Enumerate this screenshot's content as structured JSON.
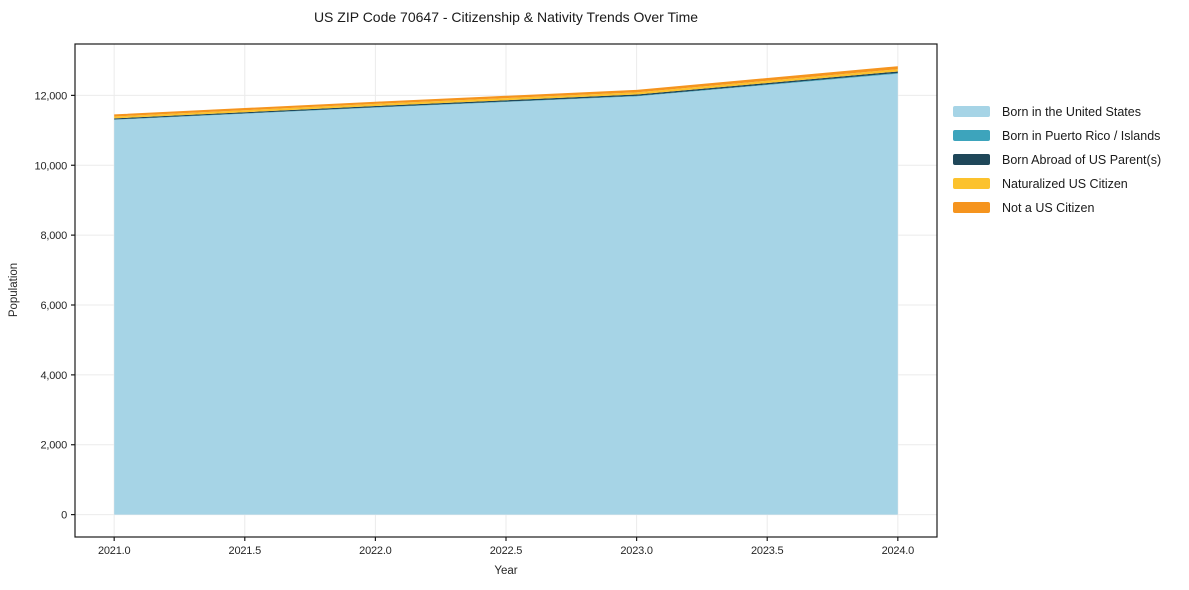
{
  "title": "US ZIP Code 70647 - Citizenship & Nativity Trends Over Time",
  "chart_data": {
    "type": "area",
    "stacked": true,
    "title": "US ZIP Code 70647 - Citizenship & Nativity Trends Over Time",
    "xlabel": "Year",
    "ylabel": "Population",
    "grid": true,
    "legend_position": "right",
    "x": [
      2021,
      2022,
      2023,
      2024
    ],
    "series": [
      {
        "name": "Born in the United States",
        "color": "#a6d4e6",
        "values": [
          11300,
          11650,
          11970,
          12620
        ]
      },
      {
        "name": "Born in Puerto Rico / Islands",
        "color": "#3da4bc",
        "values": [
          10,
          12,
          15,
          20
        ]
      },
      {
        "name": "Born Abroad of US Parent(s)",
        "color": "#1f4759",
        "values": [
          30,
          35,
          40,
          45
        ]
      },
      {
        "name": "Naturalized US Citizen",
        "color": "#fcc22d",
        "values": [
          55,
          58,
          60,
          65
        ]
      },
      {
        "name": "Not a US Citizen",
        "color": "#f5941e",
        "values": [
          60,
          65,
          72,
          85
        ]
      }
    ],
    "totals": [
      11455,
      11820,
      12157,
      12835
    ],
    "xlim": [
      2020.85,
      2024.15
    ],
    "ylim": [
      -641,
      13471
    ],
    "xticks": [
      2021.0,
      2021.5,
      2022.0,
      2022.5,
      2023.0,
      2023.5,
      2024.0
    ],
    "xtick_labels": [
      "2021.0",
      "2021.5",
      "2022.0",
      "2022.5",
      "2023.0",
      "2023.5",
      "2024.0"
    ],
    "yticks": [
      0,
      2000,
      4000,
      6000,
      8000,
      10000,
      12000
    ],
    "ytick_labels": [
      "0",
      "2,000",
      "4,000",
      "6,000",
      "8,000",
      "10,000",
      "12,000"
    ],
    "colors": {
      "grid": "#ebebeb",
      "spine": "#1a1a1a",
      "tick_text": "#262626",
      "background": "#ffffff"
    }
  }
}
